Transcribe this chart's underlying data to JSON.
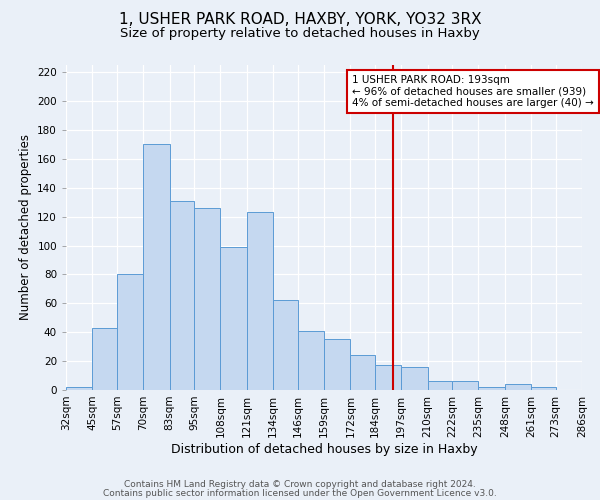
{
  "title": "1, USHER PARK ROAD, HAXBY, YORK, YO32 3RX",
  "subtitle": "Size of property relative to detached houses in Haxby",
  "xlabel": "Distribution of detached houses by size in Haxby",
  "ylabel": "Number of detached properties",
  "bin_labels": [
    "32sqm",
    "45sqm",
    "57sqm",
    "70sqm",
    "83sqm",
    "95sqm",
    "108sqm",
    "121sqm",
    "134sqm",
    "146sqm",
    "159sqm",
    "172sqm",
    "184sqm",
    "197sqm",
    "210sqm",
    "222sqm",
    "235sqm",
    "248sqm",
    "261sqm",
    "273sqm",
    "286sqm"
  ],
  "bin_edges": [
    32,
    45,
    57,
    70,
    83,
    95,
    108,
    121,
    134,
    146,
    159,
    172,
    184,
    197,
    210,
    222,
    235,
    248,
    261,
    273,
    286
  ],
  "bar_heights": [
    2,
    43,
    80,
    170,
    131,
    126,
    99,
    123,
    62,
    41,
    35,
    24,
    17,
    16,
    6,
    6,
    2,
    4,
    2,
    0
  ],
  "bar_color": "#c5d8f0",
  "bar_edgecolor": "#5b9bd5",
  "vline_x": 193,
  "vline_color": "#cc0000",
  "annotation_text": "1 USHER PARK ROAD: 193sqm\n← 96% of detached houses are smaller (939)\n4% of semi-detached houses are larger (40) →",
  "annotation_box_edgecolor": "#cc0000",
  "ylim": [
    0,
    225
  ],
  "yticks": [
    0,
    20,
    40,
    60,
    80,
    100,
    120,
    140,
    160,
    180,
    200,
    220
  ],
  "footer1": "Contains HM Land Registry data © Crown copyright and database right 2024.",
  "footer2": "Contains public sector information licensed under the Open Government Licence v3.0.",
  "background_color": "#eaf0f8",
  "grid_color": "#ffffff",
  "title_fontsize": 11,
  "subtitle_fontsize": 9.5,
  "xlabel_fontsize": 9,
  "ylabel_fontsize": 8.5,
  "tick_fontsize": 7.5,
  "footer_fontsize": 6.5,
  "annotation_fontsize": 7.5
}
